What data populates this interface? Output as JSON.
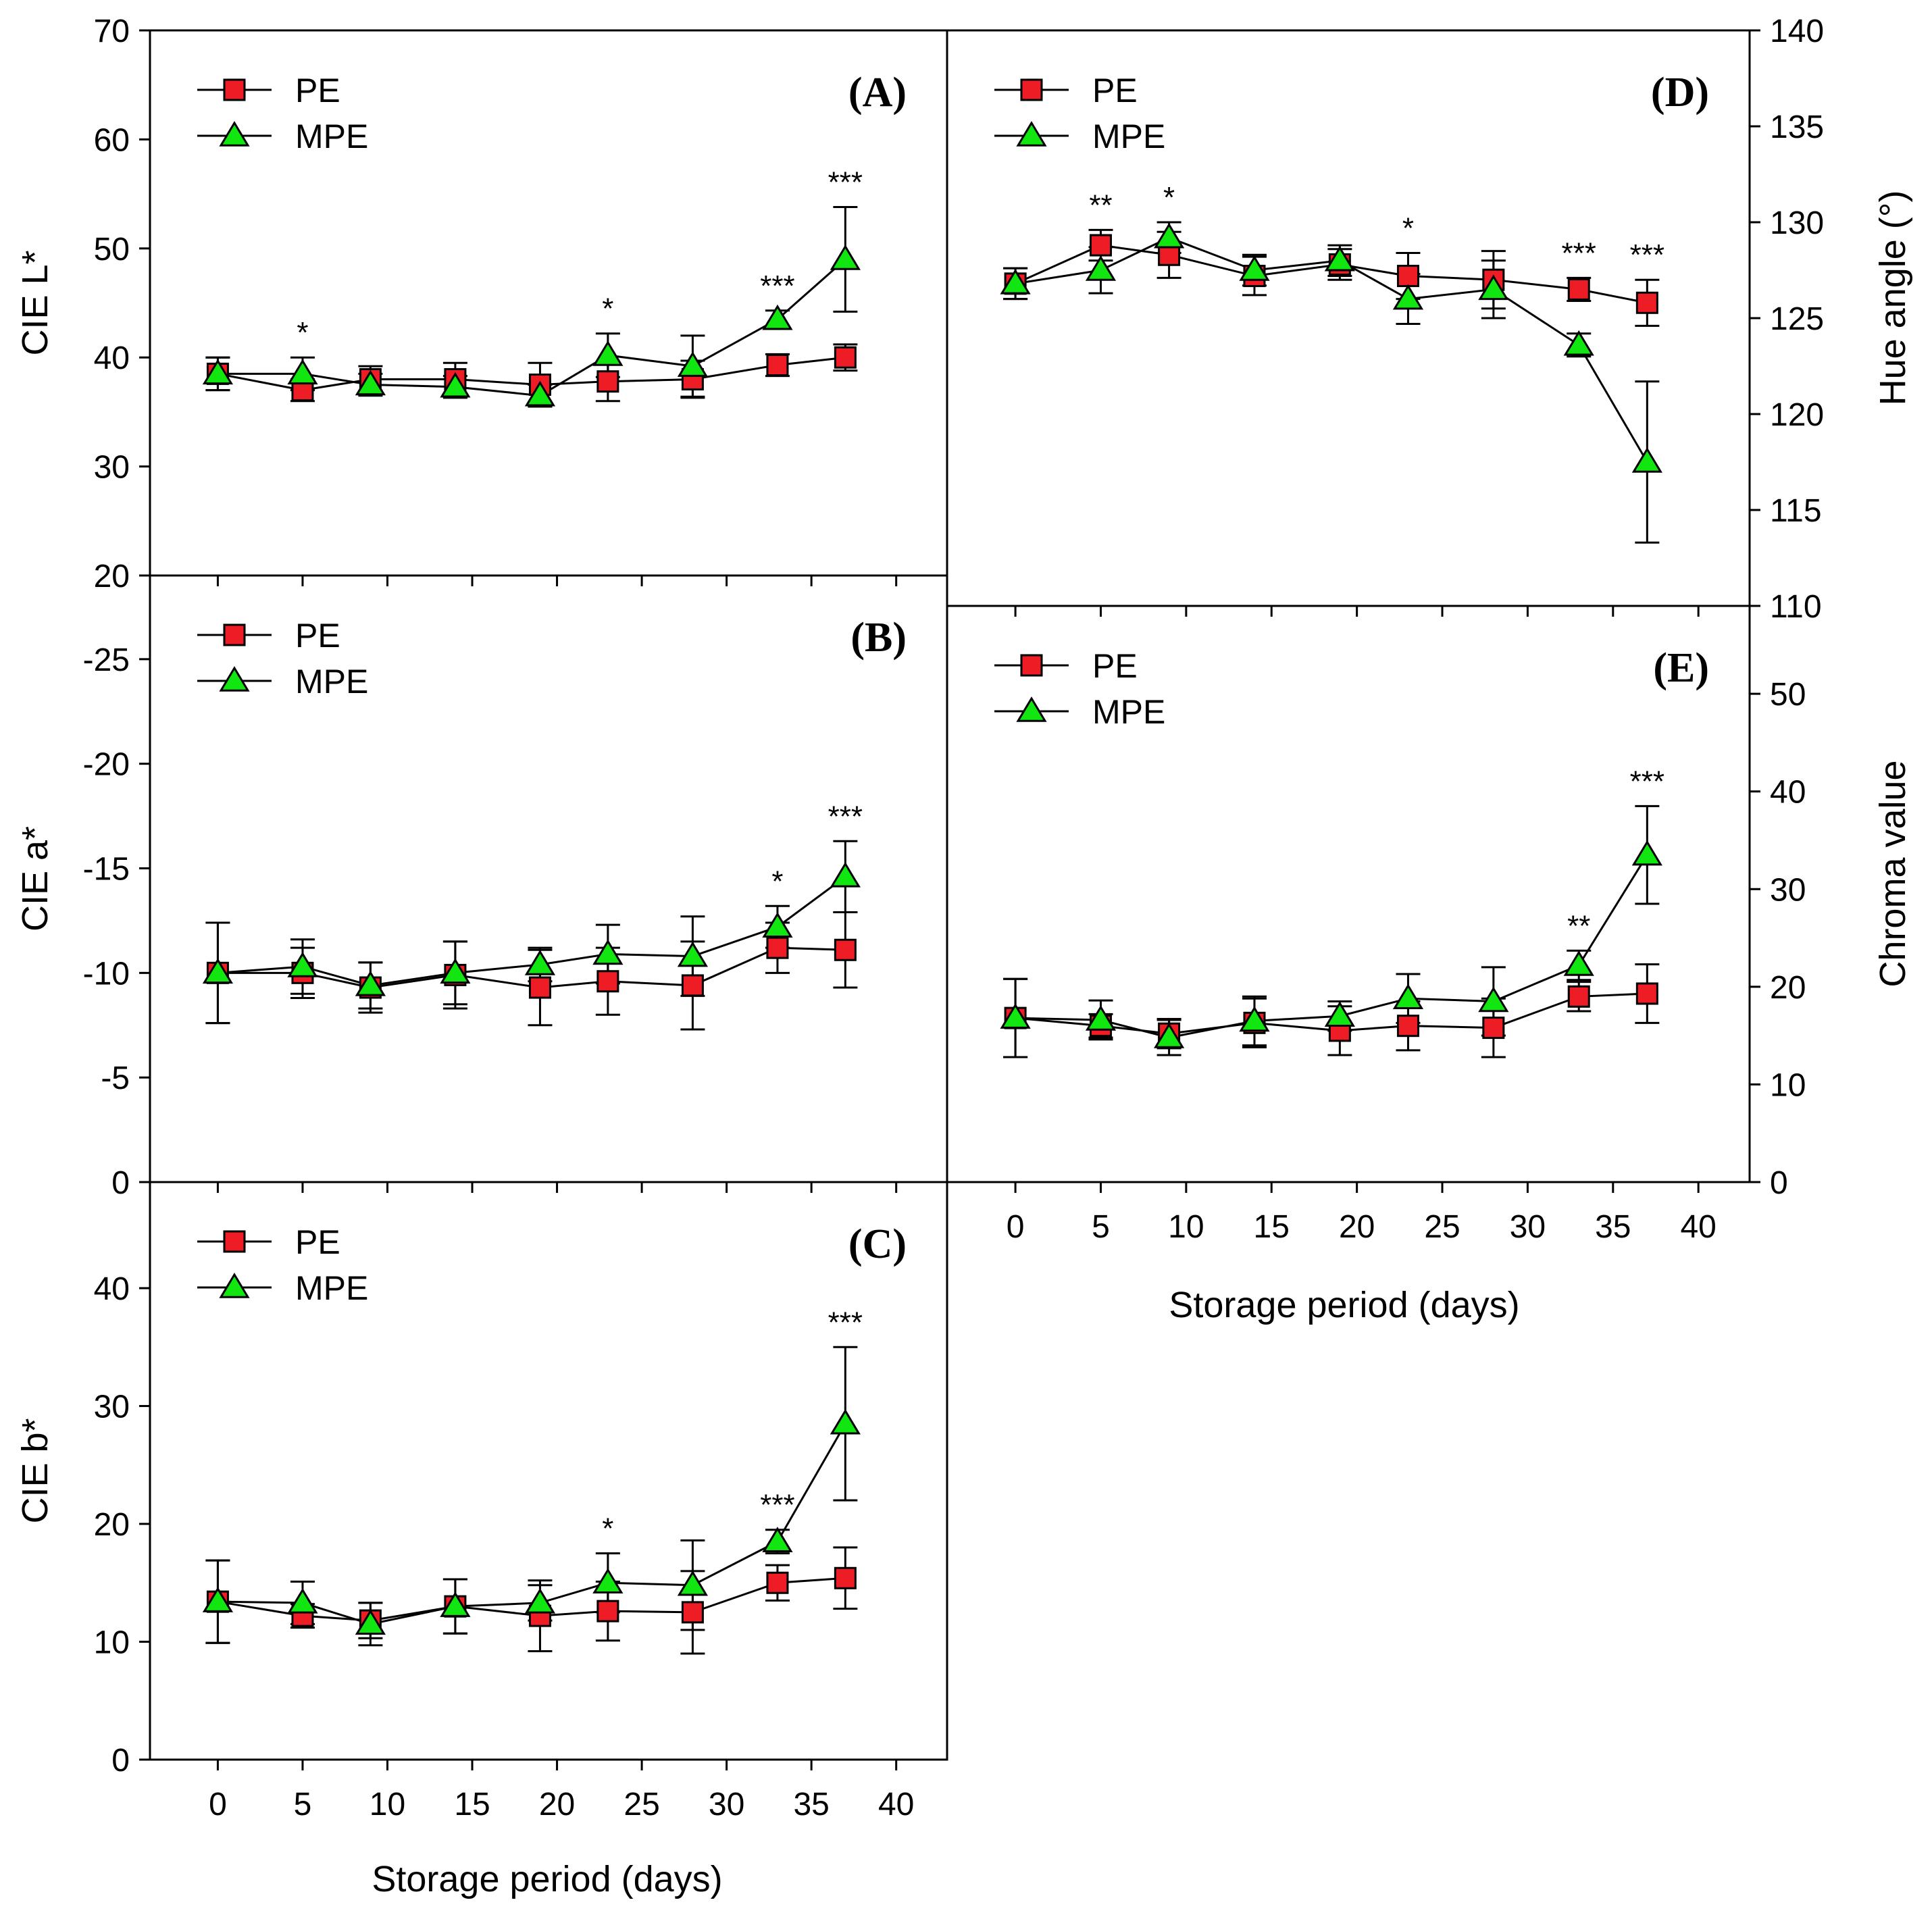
{
  "figure": {
    "xlabel": "Storage period (days)",
    "series_names": [
      "PE",
      "MPE"
    ],
    "colors": {
      "PE": "#ee1c24",
      "MPE": "#11e611",
      "outline": "#000000"
    }
  },
  "chart_data": [
    {
      "id": "A",
      "type": "line",
      "panel_label": "(A)",
      "ylabel": "CIE L*",
      "ylim": [
        20,
        70
      ],
      "yticks": [
        20,
        30,
        40,
        50,
        60,
        70
      ],
      "xlim": [
        -4,
        43
      ],
      "xticks": [
        0,
        5,
        10,
        15,
        20,
        25,
        30,
        35,
        40
      ],
      "x": [
        0,
        5,
        9,
        14,
        19,
        23,
        28,
        33,
        37
      ],
      "series": [
        {
          "name": "PE",
          "marker": "square",
          "values": [
            38.5,
            37.0,
            38.0,
            38.0,
            37.5,
            37.8,
            38.0,
            39.3,
            40.0
          ],
          "errors": [
            1.5,
            1.0,
            1.2,
            1.5,
            2.0,
            1.8,
            1.7,
            1.0,
            1.2
          ]
        },
        {
          "name": "MPE",
          "marker": "triangle",
          "values": [
            38.5,
            38.5,
            37.5,
            37.3,
            36.5,
            40.2,
            39.2,
            43.5,
            49.0
          ],
          "errors": [
            1.5,
            1.5,
            1.0,
            1.0,
            1.0,
            2.0,
            2.8,
            0.8,
            4.8
          ]
        }
      ],
      "significance": [
        {
          "x": 5,
          "text": "*"
        },
        {
          "x": 23,
          "text": "*"
        },
        {
          "x": 33,
          "text": "***"
        },
        {
          "x": 37,
          "text": "***"
        }
      ]
    },
    {
      "id": "B",
      "type": "line",
      "panel_label": "(B)",
      "ylabel": "CIE a*",
      "ylim": [
        0,
        -29
      ],
      "yticks": [
        0,
        -5,
        -10,
        -15,
        -20,
        -25
      ],
      "xlim": [
        -4,
        43
      ],
      "xticks": [
        0,
        5,
        10,
        15,
        20,
        25,
        30,
        35,
        40
      ],
      "x": [
        0,
        5,
        9,
        14,
        19,
        23,
        28,
        33,
        37
      ],
      "series": [
        {
          "name": "PE",
          "marker": "square",
          "values": [
            -10.0,
            -10.0,
            -9.3,
            -9.9,
            -9.3,
            -9.6,
            -9.4,
            -11.2,
            -11.1
          ],
          "errors": [
            2.4,
            1.2,
            1.2,
            1.6,
            1.8,
            1.6,
            2.1,
            1.2,
            1.8
          ]
        },
        {
          "name": "MPE",
          "marker": "triangle",
          "values": [
            -10.0,
            -10.3,
            -9.4,
            -10.0,
            -10.4,
            -10.9,
            -10.8,
            -12.2,
            -14.6
          ],
          "errors": [
            2.4,
            1.3,
            1.1,
            1.5,
            0.8,
            1.4,
            1.9,
            1.0,
            1.7
          ]
        }
      ],
      "significance": [
        {
          "x": 33,
          "text": "*"
        },
        {
          "x": 37,
          "text": "***"
        }
      ]
    },
    {
      "id": "C",
      "type": "line",
      "panel_label": "(C)",
      "ylabel": "CIE b*",
      "ylim": [
        0,
        49
      ],
      "yticks": [
        0,
        10,
        20,
        30,
        40
      ],
      "xlim": [
        -4,
        43
      ],
      "xticks": [
        0,
        5,
        10,
        15,
        20,
        25,
        30,
        35,
        40
      ],
      "x": [
        0,
        5,
        9,
        14,
        19,
        23,
        28,
        33,
        37
      ],
      "series": [
        {
          "name": "PE",
          "marker": "square",
          "values": [
            13.4,
            12.2,
            11.8,
            13.0,
            12.2,
            12.6,
            12.5,
            15.0,
            15.4
          ],
          "errors": [
            3.5,
            1.0,
            1.5,
            2.3,
            3.0,
            2.5,
            3.5,
            1.5,
            2.6
          ]
        },
        {
          "name": "MPE",
          "marker": "triangle",
          "values": [
            13.4,
            13.3,
            11.5,
            13.0,
            13.3,
            15.0,
            14.8,
            18.5,
            28.5
          ],
          "errors": [
            3.5,
            1.8,
            1.8,
            2.3,
            1.5,
            2.5,
            3.8,
            1.0,
            6.5
          ]
        }
      ],
      "significance": [
        {
          "x": 23,
          "text": "*"
        },
        {
          "x": 33,
          "text": "***"
        },
        {
          "x": 37,
          "text": "***"
        }
      ]
    },
    {
      "id": "D",
      "type": "line",
      "panel_label": "(D)",
      "ylabel": "Hue angle (°)",
      "ylim": [
        110,
        140
      ],
      "yticks": [
        110,
        115,
        120,
        125,
        130,
        135,
        140
      ],
      "xlim": [
        -4,
        43
      ],
      "xticks": [
        0,
        5,
        10,
        15,
        20,
        25,
        30,
        35,
        40
      ],
      "x": [
        0,
        5,
        9,
        14,
        19,
        23,
        28,
        33,
        37
      ],
      "series": [
        {
          "name": "PE",
          "marker": "square",
          "values": [
            126.8,
            128.8,
            128.3,
            127.2,
            127.8,
            127.2,
            127.0,
            126.5,
            125.8
          ],
          "errors": [
            0.8,
            0.8,
            1.2,
            1.0,
            0.8,
            1.2,
            1.5,
            0.6,
            1.2
          ]
        },
        {
          "name": "MPE",
          "marker": "triangle",
          "values": [
            126.8,
            127.5,
            129.2,
            127.5,
            128.0,
            126.0,
            126.5,
            123.6,
            117.5
          ],
          "errors": [
            0.8,
            1.2,
            0.8,
            0.8,
            0.8,
            1.3,
            1.5,
            0.6,
            4.2
          ]
        }
      ],
      "significance": [
        {
          "x": 5,
          "text": "**"
        },
        {
          "x": 9,
          "text": "*"
        },
        {
          "x": 23,
          "text": "*"
        },
        {
          "x": 33,
          "text": "***"
        },
        {
          "x": 37,
          "text": "***"
        }
      ]
    },
    {
      "id": "E",
      "type": "line",
      "panel_label": "(E)",
      "ylabel": "Chroma value",
      "ylim": [
        0,
        59
      ],
      "yticks": [
        0,
        10,
        20,
        30,
        40,
        50
      ],
      "xlim": [
        -4,
        43
      ],
      "xticks": [
        0,
        5,
        10,
        15,
        20,
        25,
        30,
        35,
        40
      ],
      "x": [
        0,
        5,
        9,
        14,
        19,
        23,
        28,
        33,
        37
      ],
      "series": [
        {
          "name": "PE",
          "marker": "square",
          "values": [
            16.8,
            16.0,
            15.2,
            16.3,
            15.5,
            16.0,
            15.8,
            19.0,
            19.3
          ],
          "errors": [
            4.0,
            1.2,
            1.5,
            2.5,
            2.5,
            2.5,
            3.0,
            1.5,
            3.0
          ]
        },
        {
          "name": "MPE",
          "marker": "triangle",
          "values": [
            16.8,
            16.6,
            14.8,
            16.5,
            17.0,
            18.8,
            18.5,
            22.2,
            33.5
          ],
          "errors": [
            4.0,
            2.0,
            1.8,
            2.5,
            1.5,
            2.5,
            3.5,
            1.5,
            5.0
          ]
        }
      ],
      "significance": [
        {
          "x": 33,
          "text": "**"
        },
        {
          "x": 37,
          "text": "***"
        }
      ]
    }
  ]
}
